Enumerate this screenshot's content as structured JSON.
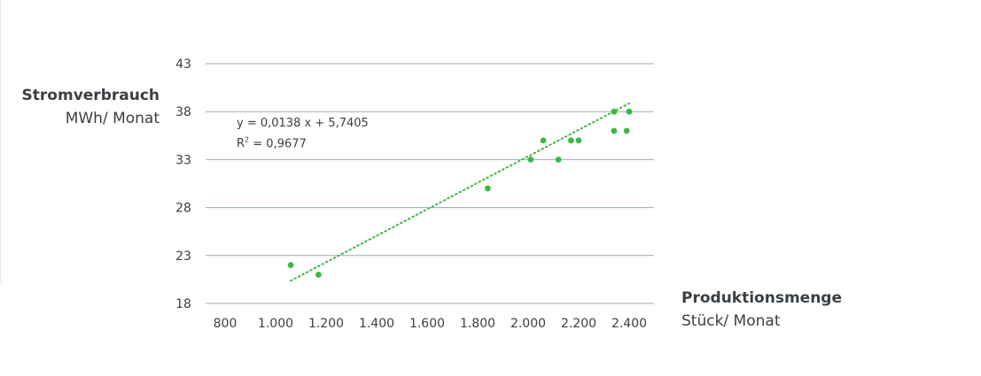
{
  "chart_data": {
    "type": "scatter",
    "ylabel": "Stromverbrauch",
    "yunit": "MWh/ Monat",
    "xlabel": "Produktionsmenge",
    "xunit": "Stück/ Monat",
    "xlim": [
      800,
      2400
    ],
    "ylim": [
      18,
      43
    ],
    "xticks": [
      800,
      1000,
      1200,
      1400,
      1600,
      1800,
      2000,
      2200,
      2400
    ],
    "xtick_labels": [
      "800",
      "1.000",
      "1.200",
      "1.400",
      "1.600",
      "1.800",
      "2.000",
      "2.200",
      "2.400"
    ],
    "yticks": [
      18,
      23,
      28,
      33,
      38,
      43
    ],
    "ytick_labels": [
      "18",
      "23",
      "28",
      "33",
      "38",
      "43"
    ],
    "grid": "horizontal",
    "points": [
      {
        "x": 1060,
        "y": 22
      },
      {
        "x": 1170,
        "y": 21
      },
      {
        "x": 1840,
        "y": 30
      },
      {
        "x": 2010,
        "y": 33
      },
      {
        "x": 2060,
        "y": 35
      },
      {
        "x": 2120,
        "y": 33
      },
      {
        "x": 2170,
        "y": 35
      },
      {
        "x": 2200,
        "y": 35
      },
      {
        "x": 2340,
        "y": 38
      },
      {
        "x": 2340,
        "y": 36
      },
      {
        "x": 2390,
        "y": 36
      },
      {
        "x": 2400,
        "y": 38
      }
    ],
    "trendline": {
      "slope": 0.0138,
      "intercept": 5.7405,
      "x_range": [
        1060,
        2400
      ],
      "style": "dotted",
      "equation_label": "y = 0,0138 x + 5,7405",
      "r2_prefix": "R",
      "r2_sup": "2",
      "r2_value": " = 0,9677"
    },
    "colors": {
      "points": "#3db843",
      "trendline": "#3db843",
      "grid": "#9aabb9"
    }
  }
}
